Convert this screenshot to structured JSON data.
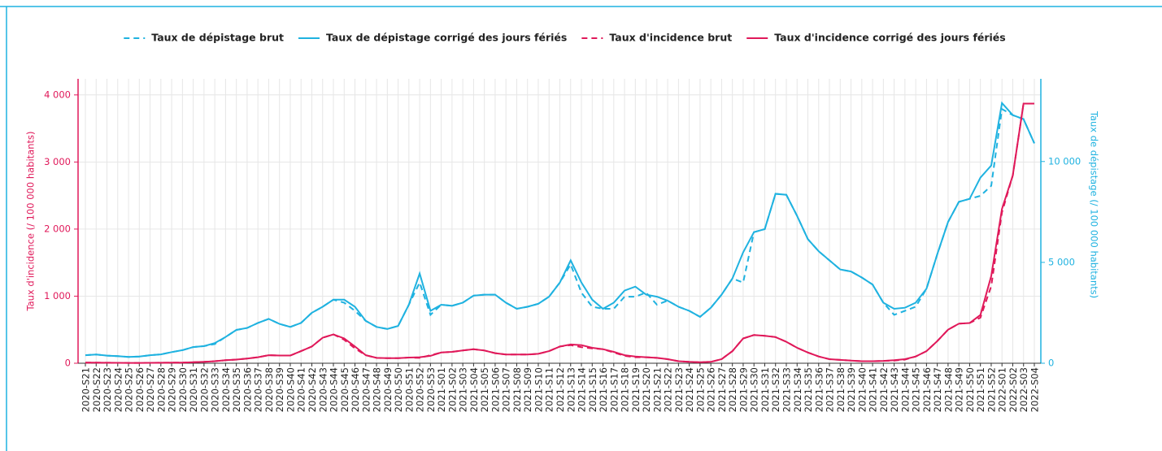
{
  "chart_data": {
    "type": "line",
    "categories": [
      "2020-S21",
      "2020-S22",
      "2020-S23",
      "2020-S24",
      "2020-S25",
      "2020-S26",
      "2020-S27",
      "2020-S28",
      "2020-S29",
      "2020-S30",
      "2020-S31",
      "2020-S32",
      "2020-S33",
      "2020-S34",
      "2020-S35",
      "2020-S36",
      "2020-S37",
      "2020-S38",
      "2020-S39",
      "2020-S40",
      "2020-S41",
      "2020-S42",
      "2020-S43",
      "2020-S44",
      "2020-S45",
      "2020-S46",
      "2020-S47",
      "2020-S48",
      "2020-S49",
      "2020-S50",
      "2020-S51",
      "2020-S52",
      "2020-S53",
      "2021-S01",
      "2021-S02",
      "2021-S03",
      "2021-S04",
      "2021-S05",
      "2021-S06",
      "2021-S07",
      "2021-S08",
      "2021-S09",
      "2021-S10",
      "2021-S11",
      "2021-S12",
      "2021-S13",
      "2021-S14",
      "2021-S15",
      "2021-S16",
      "2021-S17",
      "2021-S18",
      "2021-S19",
      "2021-S20",
      "2021-S21",
      "2021-S22",
      "2021-S23",
      "2021-S24",
      "2021-S25",
      "2021-S26",
      "2021-S27",
      "2021-S28",
      "2021-S29",
      "2021-S30",
      "2021-S31",
      "2021-S32",
      "2021-S33",
      "2021-S34",
      "2021-S35",
      "2021-S36",
      "2021-S37",
      "2021-S38",
      "2021-S39",
      "2021-S40",
      "2021-S41",
      "2021-S42",
      "2021-S43",
      "2021-S44",
      "2021-S45",
      "2021-S46",
      "2021-S47",
      "2021-S48",
      "2021-S49",
      "2021-S50",
      "2021-S51",
      "2021-S52",
      "2022-S01",
      "2022-S02",
      "2022-S03",
      "2022-S04"
    ],
    "series": [
      {
        "name": "Taux de dépistage brut",
        "color": "#1fb2e0",
        "dashed": true,
        "axis": "y2",
        "values": [
          400,
          430,
          380,
          350,
          310,
          330,
          400,
          440,
          550,
          650,
          800,
          850,
          950,
          1300,
          1650,
          1750,
          2000,
          2200,
          1950,
          1800,
          2000,
          2500,
          2800,
          3150,
          3000,
          2600,
          2100,
          1800,
          1700,
          1850,
          2900,
          4000,
          2400,
          2900,
          2850,
          3000,
          3350,
          3400,
          3400,
          3000,
          2700,
          2800,
          2950,
          3300,
          4000,
          4900,
          3500,
          2800,
          2700,
          2700,
          3300,
          3300,
          3500,
          2900,
          3100,
          2800,
          2600,
          2300,
          2750,
          3400,
          4200,
          4000,
          6500,
          6650,
          8400,
          8350,
          7300,
          6150,
          5550,
          5100,
          4650,
          4550,
          4250,
          3900,
          3000,
          2400,
          2600,
          2800,
          3700,
          5400,
          7000,
          8000,
          8150,
          8300,
          8800,
          12600,
          12300,
          12100,
          10900
        ]
      },
      {
        "name": "Taux de dépistage corrigé des jours fériés",
        "color": "#1fb2e0",
        "dashed": false,
        "axis": "y2",
        "values": [
          400,
          430,
          380,
          350,
          310,
          330,
          400,
          440,
          550,
          650,
          800,
          850,
          1000,
          1300,
          1650,
          1750,
          2000,
          2200,
          1950,
          1800,
          2000,
          2500,
          2800,
          3150,
          3150,
          2800,
          2100,
          1800,
          1700,
          1850,
          2900,
          4450,
          2600,
          2900,
          2850,
          3000,
          3350,
          3400,
          3400,
          3000,
          2700,
          2800,
          2950,
          3300,
          4000,
          5100,
          4000,
          3150,
          2700,
          3000,
          3600,
          3800,
          3400,
          3300,
          3100,
          2800,
          2600,
          2300,
          2750,
          3400,
          4200,
          5500,
          6500,
          6650,
          8400,
          8350,
          7300,
          6150,
          5550,
          5100,
          4650,
          4550,
          4250,
          3900,
          3000,
          2700,
          2750,
          3000,
          3700,
          5400,
          7000,
          8000,
          8150,
          9200,
          9800,
          12900,
          12300,
          12100,
          10900
        ]
      },
      {
        "name": "Taux d'incidence brut",
        "color": "#e0195a",
        "dashed": true,
        "axis": "y",
        "values": [
          10,
          8,
          7,
          6,
          5,
          5,
          6,
          7,
          8,
          10,
          15,
          20,
          30,
          45,
          55,
          70,
          90,
          120,
          115,
          115,
          180,
          250,
          380,
          430,
          350,
          220,
          120,
          80,
          75,
          75,
          85,
          80,
          120,
          160,
          170,
          190,
          210,
          190,
          150,
          130,
          130,
          130,
          140,
          180,
          250,
          270,
          240,
          220,
          210,
          160,
          110,
          90,
          90,
          80,
          60,
          30,
          20,
          15,
          20,
          60,
          180,
          370,
          420,
          410,
          390,
          320,
          230,
          160,
          100,
          60,
          50,
          40,
          30,
          30,
          35,
          40,
          55,
          100,
          180,
          330,
          500,
          590,
          600,
          680,
          1150,
          2250,
          2800,
          3870,
          3870
        ]
      },
      {
        "name": "Taux d'incidence corrigé des jours fériés",
        "color": "#e0195a",
        "dashed": false,
        "axis": "y",
        "values": [
          10,
          8,
          7,
          6,
          5,
          5,
          6,
          7,
          8,
          10,
          15,
          20,
          30,
          45,
          55,
          70,
          90,
          120,
          115,
          115,
          180,
          250,
          380,
          430,
          370,
          250,
          120,
          80,
          75,
          75,
          85,
          90,
          110,
          160,
          170,
          190,
          210,
          190,
          150,
          130,
          130,
          130,
          140,
          180,
          250,
          280,
          270,
          230,
          210,
          170,
          120,
          100,
          90,
          80,
          60,
          30,
          20,
          15,
          20,
          60,
          180,
          370,
          420,
          410,
          390,
          320,
          230,
          160,
          100,
          60,
          50,
          40,
          30,
          30,
          35,
          45,
          60,
          100,
          180,
          330,
          500,
          590,
          600,
          720,
          1300,
          2300,
          2800,
          3870,
          3870
        ]
      }
    ],
    "ylabel": "Taux d'incidence (/ 100 000 habitants)",
    "y2label": "Taux de dépistage (/ 100 000 habitants)",
    "ylim": [
      0,
      4240
    ],
    "yticks": [
      0,
      {
        "value": 1000,
        "label": "1 000"
      },
      {
        "value": 2000,
        "label": "2 000"
      },
      {
        "value": 3000,
        "label": "3 000"
      },
      {
        "value": 4000,
        "label": "4 000"
      }
    ],
    "ycolor": "#e0195a",
    "y2lim": [
      0,
      14100
    ],
    "y2ticks": [
      0,
      {
        "value": 5000,
        "label": "5 000"
      },
      {
        "value": 10000,
        "label": "10 000"
      }
    ],
    "y2color": "#1fb2e0",
    "grid": true,
    "legend": "top"
  }
}
